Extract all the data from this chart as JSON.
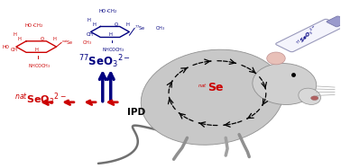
{
  "bg_color": "#ffffff",
  "fig_width": 3.78,
  "fig_height": 1.87,
  "dpi": 100,
  "red_color": "#cc0000",
  "blue_color": "#000080",
  "black": "#000000",
  "nat_seo3_label_sup": "nat",
  "nat_seo3_label_main": "SeO",
  "Se77_label": "$^{77}$SeO$_3$$^{2-}$",
  "IPD_label": "IPD",
  "natSe_label_sup": "nat",
  "natSe_label_main": "Se",
  "bottle_label": "$^{77}$SeO$_3$$^{2-}$"
}
